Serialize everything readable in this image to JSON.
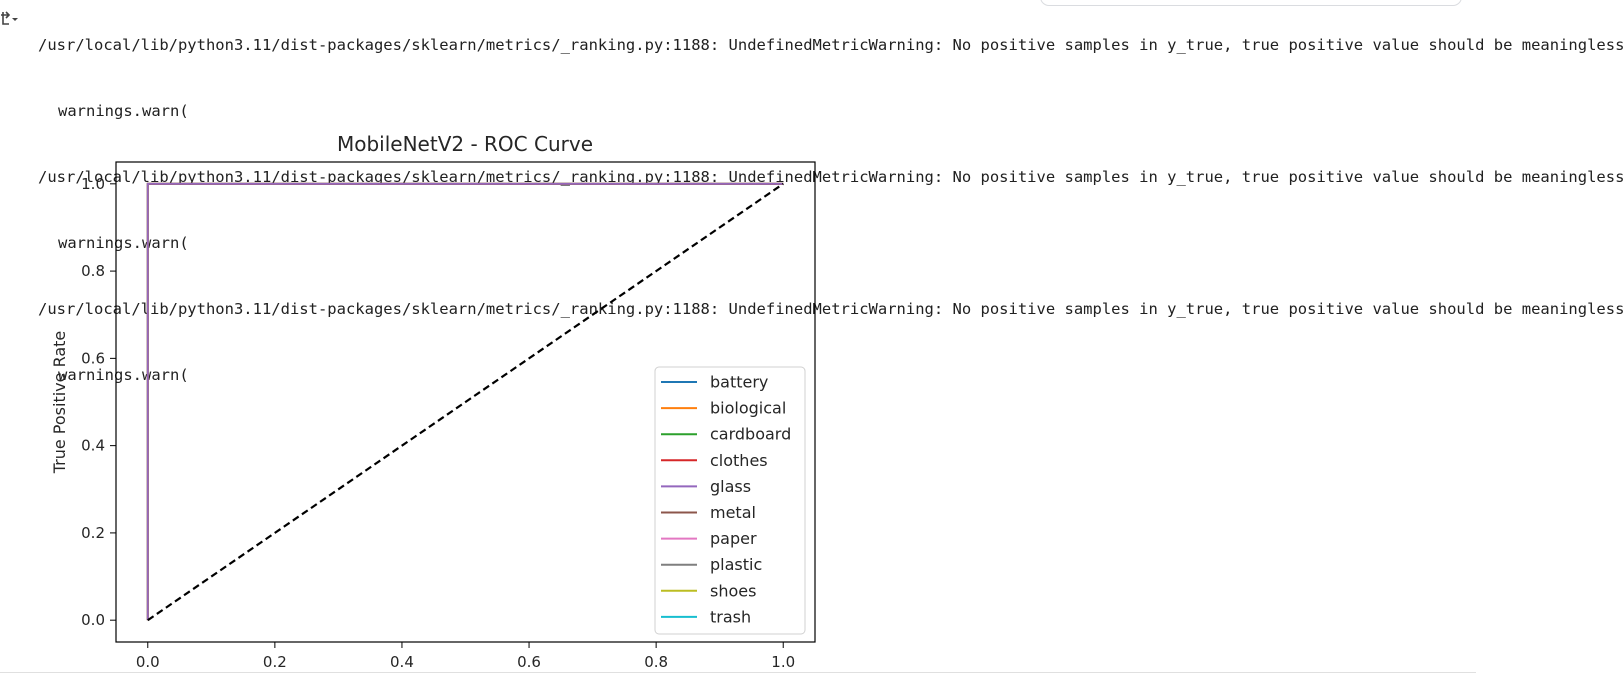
{
  "output": {
    "lines": [
      {
        "text": "/usr/local/lib/python3.11/dist-packages/sklearn/metrics/_ranking.py:1188: UndefinedMetricWarning: No positive samples in y_true, true positive value should be meaningless",
        "indent": false
      },
      {
        "text": "warnings.warn(",
        "indent": true
      },
      {
        "text": "/usr/local/lib/python3.11/dist-packages/sklearn/metrics/_ranking.py:1188: UndefinedMetricWarning: No positive samples in y_true, true positive value should be meaningless",
        "indent": false
      },
      {
        "text": "warnings.warn(",
        "indent": true
      },
      {
        "text": "/usr/local/lib/python3.11/dist-packages/sklearn/metrics/_ranking.py:1188: UndefinedMetricWarning: No positive samples in y_true, true positive value should be meaningless",
        "indent": false
      },
      {
        "text": "warnings.warn(",
        "indent": true
      }
    ]
  },
  "chart_data": {
    "type": "line",
    "title": "MobileNetV2 - ROC Curve",
    "xlabel": "",
    "ylabel": "True Positive Rate",
    "xlim": [
      -0.05,
      1.05
    ],
    "ylim": [
      -0.05,
      1.05
    ],
    "xticks": [
      0.0,
      0.2,
      0.4,
      0.6,
      0.8,
      1.0
    ],
    "yticks": [
      0.0,
      0.2,
      0.4,
      0.6,
      0.8,
      1.0
    ],
    "tick_labels": [
      "0.0",
      "0.2",
      "0.4",
      "0.6",
      "0.8",
      "1.0"
    ],
    "grid": false,
    "legend_position": "lower-right",
    "series": [
      {
        "name": "battery",
        "color": "#1f77b4",
        "x": [
          0.0,
          0.0,
          1.0
        ],
        "y": [
          0.0,
          1.0,
          1.0
        ]
      },
      {
        "name": "biological",
        "color": "#ff7f0e",
        "x": [
          0.0,
          0.0,
          1.0
        ],
        "y": [
          0.0,
          1.0,
          1.0
        ]
      },
      {
        "name": "cardboard",
        "color": "#2ca02c",
        "x": [
          0.0,
          0.0,
          1.0
        ],
        "y": [
          0.0,
          1.0,
          1.0
        ]
      },
      {
        "name": "clothes",
        "color": "#d62728",
        "x": [
          0.0,
          0.0,
          1.0
        ],
        "y": [
          0.0,
          1.0,
          1.0
        ]
      },
      {
        "name": "glass",
        "color": "#9467bd",
        "x": [
          0.0,
          0.0,
          1.0
        ],
        "y": [
          0.0,
          1.0,
          1.0
        ]
      },
      {
        "name": "metal",
        "color": "#8c564b",
        "x": [],
        "y": []
      },
      {
        "name": "paper",
        "color": "#e377c2",
        "x": [],
        "y": []
      },
      {
        "name": "plastic",
        "color": "#7f7f7f",
        "x": [],
        "y": []
      },
      {
        "name": "shoes",
        "color": "#bcbd22",
        "x": [],
        "y": []
      },
      {
        "name": "trash",
        "color": "#17becf",
        "x": [],
        "y": []
      }
    ],
    "reference_line": {
      "x": [
        0.0,
        1.0
      ],
      "y": [
        0.0,
        1.0
      ],
      "color": "#000000",
      "style": "dashed"
    }
  }
}
